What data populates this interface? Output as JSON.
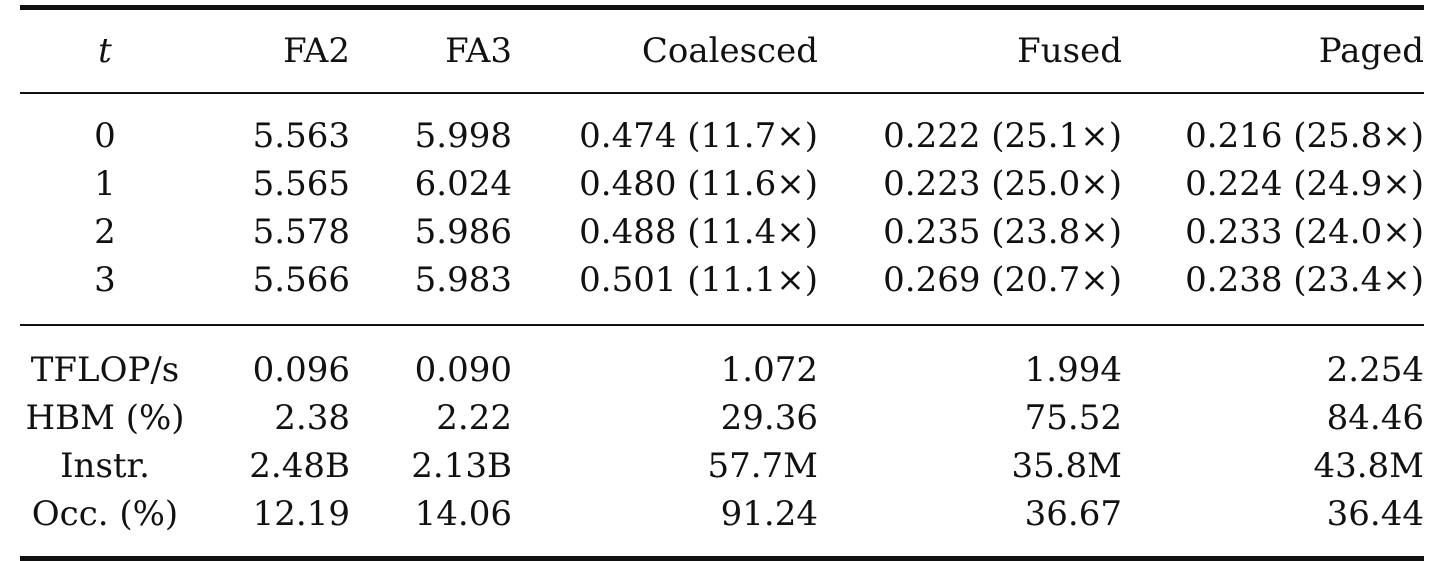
{
  "table": {
    "header": [
      "t",
      "FA2",
      "FA3",
      "Coalesced",
      "Fused",
      "Paged"
    ],
    "time_rows": [
      [
        "0",
        "5.563",
        "5.998",
        "0.474 (11.7×)",
        "0.222 (25.1×)",
        "0.216 (25.8×)"
      ],
      [
        "1",
        "5.565",
        "6.024",
        "0.480 (11.6×)",
        "0.223 (25.0×)",
        "0.224 (24.9×)"
      ],
      [
        "2",
        "5.578",
        "5.986",
        "0.488 (11.4×)",
        "0.235 (23.8×)",
        "0.233 (24.0×)"
      ],
      [
        "3",
        "5.566",
        "5.983",
        "0.501 (11.1×)",
        "0.269 (20.7×)",
        "0.238 (23.4×)"
      ]
    ],
    "metric_rows": [
      [
        "TFLOP/s",
        "0.096",
        "0.090",
        "1.072",
        "1.994",
        "2.254"
      ],
      [
        "HBM (%)",
        "2.38",
        "2.22",
        "29.36",
        "75.52",
        "84.46"
      ],
      [
        "Instr.",
        "2.48B",
        "2.13B",
        "57.7M",
        "35.8M",
        "43.8M"
      ],
      [
        "Occ. (%)",
        "12.19",
        "14.06",
        "91.24",
        "36.67",
        "36.44"
      ]
    ]
  }
}
